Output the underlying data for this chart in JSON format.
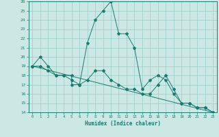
{
  "xlabel": "Humidex (Indice chaleur)",
  "x_ticks": [
    0,
    1,
    2,
    3,
    4,
    5,
    6,
    7,
    8,
    9,
    10,
    11,
    12,
    13,
    14,
    15,
    16,
    17,
    18,
    19,
    20,
    21,
    22,
    23
  ],
  "ylim": [
    14,
    26
  ],
  "y_ticks": [
    14,
    15,
    16,
    17,
    18,
    19,
    20,
    21,
    22,
    23,
    24,
    25,
    26
  ],
  "bg_color": "#cce8e4",
  "grid_color": "#99ccc6",
  "line_color": "#1a7a6e",
  "series1_x": [
    0,
    1,
    2,
    3,
    4,
    5,
    5,
    6,
    7,
    8,
    9,
    10,
    11,
    12,
    13,
    14,
    15,
    16,
    17,
    18,
    19,
    20,
    21,
    22,
    23
  ],
  "series1_y": [
    19,
    20,
    19,
    18,
    18,
    18,
    17,
    17,
    21.5,
    24,
    25,
    26,
    22.5,
    22.5,
    21,
    16.5,
    17.5,
    18,
    17.5,
    16,
    15,
    15,
    14.5,
    14.5,
    14
  ],
  "series2_x": [
    0,
    1,
    2,
    3,
    4,
    5,
    6,
    7,
    8,
    9,
    10,
    11,
    12,
    13,
    14,
    15,
    16,
    17,
    18,
    19,
    20,
    21,
    22,
    23
  ],
  "series2_y": [
    19,
    19,
    18.5,
    18,
    18,
    17.5,
    17,
    17.5,
    18.5,
    18.5,
    17.5,
    17,
    16.5,
    16.5,
    16,
    16,
    17,
    18,
    16.5,
    15,
    15,
    14.5,
    14.5,
    14
  ],
  "trend_x": [
    0,
    23
  ],
  "trend_y": [
    19.0,
    14.0
  ]
}
